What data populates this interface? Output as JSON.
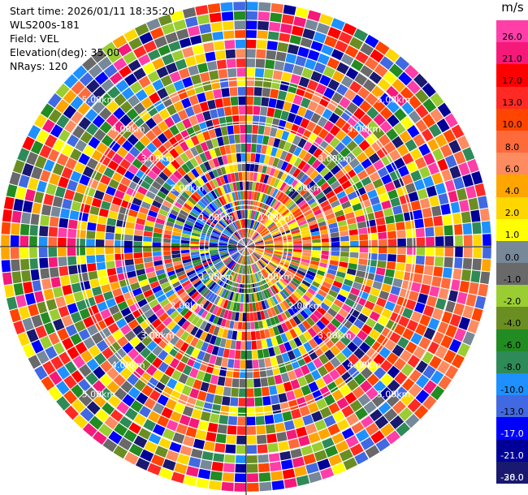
{
  "info": {
    "start_time": "Start time: 2026/01/11 18:35:20",
    "instrument": "WLS200s-181",
    "field": "Field: VEL",
    "elevation": "Elevation(deg): 35.00",
    "nrays": "NRays: 120"
  },
  "chart_data": {
    "type": "heatmap",
    "projection": "polar-ppi",
    "n_rays": 120,
    "field": "VEL",
    "unit": "m/s",
    "range_rings_km": [
      "1.00km",
      "2.00km",
      "3.00km",
      "4.00km",
      "5.00km"
    ],
    "ring_label_positions": [
      "upper-left",
      "upper-right",
      "lower-left",
      "lower-right"
    ],
    "max_range_km": 5.9,
    "colorbar": {
      "unit": "m/s",
      "ticks": [
        "26.0",
        "21.0",
        "17.0",
        "13.0",
        "10.0",
        "8.0",
        "6.0",
        "4.0",
        "2.0",
        "1.0",
        "0.0",
        "-1.0",
        "-2.0",
        "-4.0",
        "-6.0",
        "-8.0",
        "-10.0",
        "-13.0",
        "-17.0",
        "-21.0",
        "-26.0",
        "-30.0"
      ],
      "colors": [
        "#ff3ea8",
        "#f5197a",
        "#ff0000",
        "#ff2a24",
        "#ff4500",
        "#ff6a3a",
        "#ff8b60",
        "#ffa500",
        "#ffd700",
        "#ffff00",
        "#778899",
        "#696969",
        "#9acd32",
        "#6b8e23",
        "#228b22",
        "#2e8b57",
        "#1e90ff",
        "#4169e1",
        "#0000ff",
        "#000099",
        "#191970"
      ]
    },
    "pattern": {
      "near_field_positive_sector": "east",
      "near_field_negative_sector": "west",
      "far_field_positive_sector": "east-southeast"
    }
  }
}
